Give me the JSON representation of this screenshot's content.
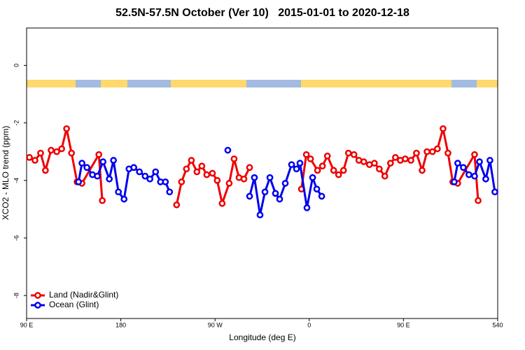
{
  "chart_data": {
    "type": "line",
    "title": "52.5N-57.5N October (Ver 10)   2015-01-01 to 2020-12-18",
    "x_label": "Longitude (deg E)",
    "y_label": "XCO2 - MLO trend (ppm)",
    "xlim": [
      90,
      540
    ],
    "ylim": [
      -8.8,
      1.3
    ],
    "xticks": [
      {
        "value": 90,
        "label": "90 E"
      },
      180,
      {
        "value": 270,
        "label": "90 W"
      },
      {
        "value": 360,
        "label": "0"
      },
      {
        "value": 450,
        "label": "90 E"
      },
      540
    ],
    "yticks": [
      0,
      -2,
      -4,
      -6,
      -8
    ],
    "legend": "bottom-left",
    "series": [
      {
        "name": "Land (Nadir&Glint)",
        "color": "#ee0000",
        "x": [
          92.7,
          98,
          103.4,
          108,
          113.4,
          118.8,
          123.5,
          128.2,
          132.9,
          138.2,
          142.9,
          159,
          162.3,
          200,
          233.3,
          238,
          242.7,
          247.4,
          252.7,
          257.4,
          262.1,
          267.5,
          272.1,
          276.8,
          283.5,
          288.2,
          292.9,
          297.6,
          303,
          330,
          352.5,
          357.2,
          361.2,
          367.9,
          372.6,
          377.3,
          383.3,
          388,
          392.7,
          397.4,
          402.7,
          407.4,
          412.1,
          417.5,
          422.2,
          426.9,
          432.2,
          437.6,
          442.3,
          447,
          451.7,
          457.1,
          462.4,
          467.8,
          472.5,
          477.7,
          482.4,
          487.8,
          492.5,
          497.1,
          501.8,
          517.9,
          521.3
        ],
        "values": [
          -3.2,
          -3.3,
          -3.05,
          -3.65,
          -2.95,
          -3.0,
          -2.9,
          -2.2,
          -3.05,
          -4.05,
          -4.1,
          -3.1,
          -4.7,
          null,
          -4.85,
          -4.05,
          -3.6,
          -3.3,
          -3.7,
          -3.5,
          -3.8,
          -3.75,
          -4.0,
          -4.8,
          -4.1,
          -3.25,
          -3.9,
          -3.95,
          -3.55,
          null,
          -4.3,
          -3.1,
          -3.25,
          -3.65,
          -3.5,
          -3.15,
          -3.65,
          -3.8,
          -3.65,
          -3.05,
          -3.1,
          -3.3,
          -3.35,
          -3.45,
          -3.4,
          -3.6,
          -3.85,
          -3.4,
          -3.2,
          -3.3,
          -3.25,
          -3.3,
          -3.05,
          -3.65,
          -3.0,
          -3.0,
          -2.9,
          -2.2,
          -3.05,
          -4.05,
          -4.1,
          -3.1,
          -4.7
        ]
      },
      {
        "name": "Ocean (Glint)",
        "color": "#0000ee",
        "x": [
          139.6,
          142.9,
          147.6,
          152.9,
          157.6,
          163,
          169,
          173,
          177.7,
          183.1,
          187.8,
          192.4,
          197.8,
          203.2,
          207.8,
          213.2,
          217.9,
          222.6,
          226.6,
          250,
          282.2,
          290,
          303,
          307.6,
          313,
          317.7,
          322.4,
          327.7,
          331.7,
          337.1,
          343.1,
          347.8,
          351.1,
          357.8,
          363.2,
          367.2,
          371.9,
          450,
          498.5,
          501.8,
          507.2,
          512.5,
          517.9,
          522.6,
          528.6,
          532.6,
          537.3
        ],
        "values": [
          -4.05,
          -3.4,
          -3.55,
          -3.8,
          -3.85,
          -3.35,
          -3.95,
          -3.3,
          -4.4,
          -4.65,
          -3.6,
          -3.55,
          -3.7,
          -3.85,
          -3.95,
          -3.7,
          -4.05,
          -4.05,
          -4.4,
          null,
          -2.95,
          null,
          -4.55,
          -3.9,
          -5.2,
          -4.4,
          -3.9,
          -4.45,
          -4.65,
          -4.1,
          -3.45,
          -3.6,
          -3.4,
          -4.95,
          -3.9,
          -4.3,
          -4.55,
          null,
          -4.05,
          -3.4,
          -3.55,
          -3.8,
          -3.85,
          -3.35,
          -3.95,
          -3.3,
          -4.4
        ]
      }
    ]
  }
}
